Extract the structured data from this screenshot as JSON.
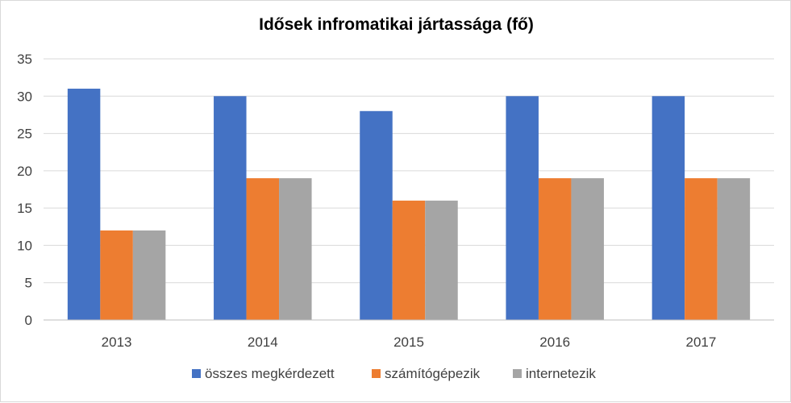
{
  "chart_data": {
    "type": "bar",
    "title": "Idősek infromatikai jártassága (fő)",
    "categories": [
      "2013",
      "2014",
      "2015",
      "2016",
      "2017"
    ],
    "series": [
      {
        "name": "összes megkérdezett",
        "color": "#4472c4",
        "values": [
          31,
          30,
          28,
          30,
          30
        ]
      },
      {
        "name": "számítógépezik",
        "color": "#ed7d31",
        "values": [
          12,
          19,
          16,
          19,
          19
        ]
      },
      {
        "name": "internetezik",
        "color": "#a5a5a5",
        "values": [
          12,
          19,
          16,
          19,
          19
        ]
      }
    ],
    "yticks": [
      "0",
      "5",
      "10",
      "15",
      "20",
      "25",
      "30",
      "35"
    ],
    "ylim": [
      0,
      35
    ],
    "grid": true,
    "legend_position": "bottom"
  }
}
